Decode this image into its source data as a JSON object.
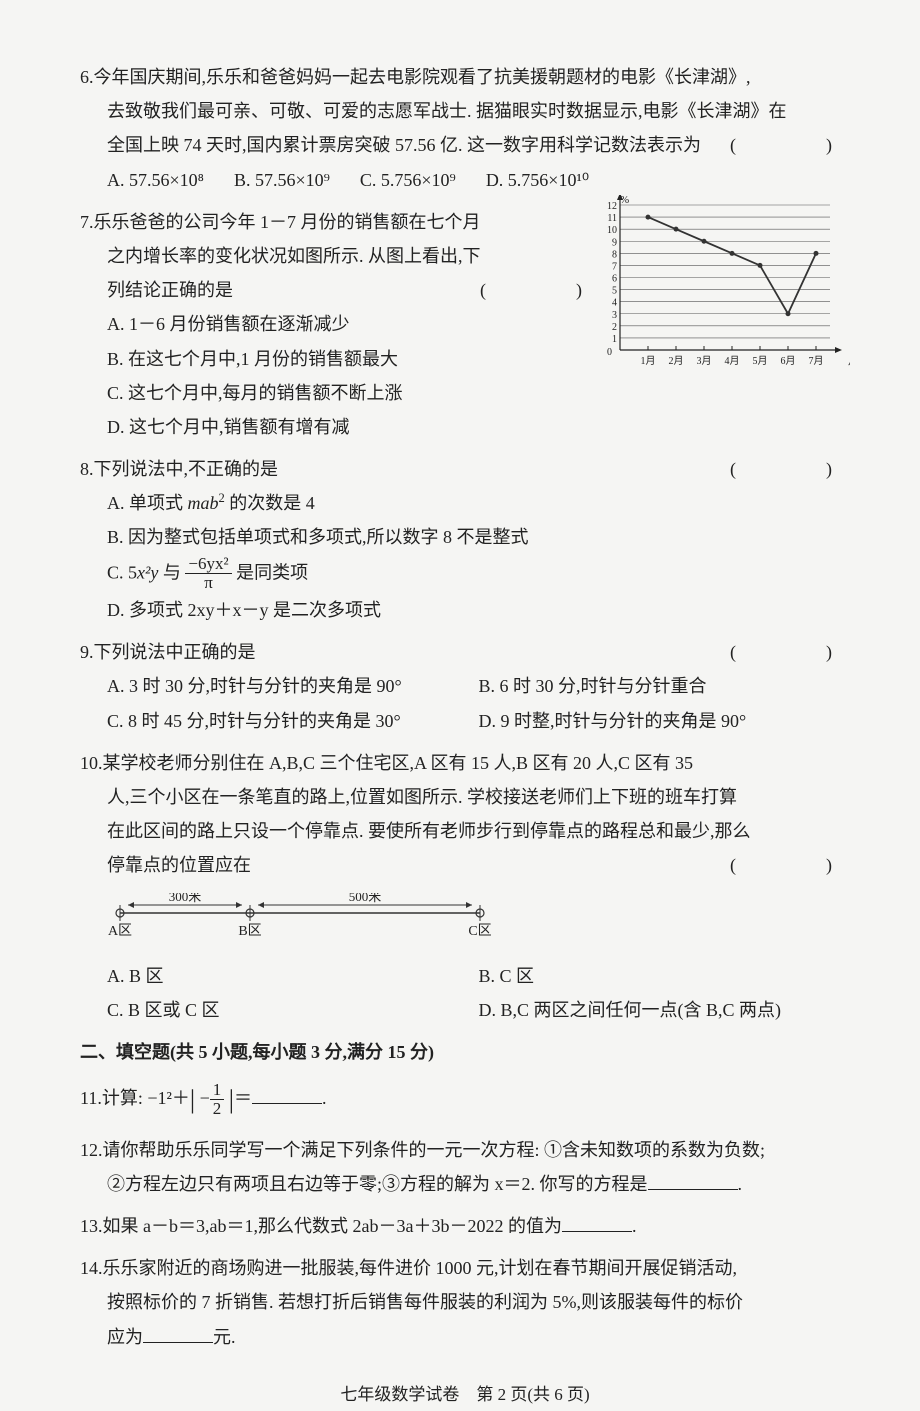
{
  "q6": {
    "num": "6.",
    "text1": "今年国庆期间,乐乐和爸爸妈妈一起去电影院观看了抗美援朝题材的电影《长津湖》,",
    "text2": "去致敬我们最可亲、可敬、可爱的志愿军战士. 据猫眼实时数据显示,电影《长津湖》在",
    "text3": "全国上映 74 天时,国内累计票房突破 57.56 亿. 这一数字用科学记数法表示为",
    "paren": "(　　)",
    "optA": "A. 57.56×10⁸",
    "optB": "B. 57.56×10⁹",
    "optC": "C. 5.756×10⁹",
    "optD": "D. 5.756×10¹⁰"
  },
  "q7": {
    "num": "7.",
    "text1": "乐乐爸爸的公司今年 1－7 月份的销售额在七个月",
    "text2": "之内增长率的变化状况如图所示. 从图上看出,下",
    "text3": "列结论正确的是",
    "paren": "(　　)",
    "optA": "A. 1－6 月份销售额在逐渐减少",
    "optB": "B. 在这七个月中,1 月份的销售额最大",
    "optC": "C. 这七个月中,每月的销售额不断上涨",
    "optD": "D. 这七个月中,销售额有增有减"
  },
  "chart": {
    "ylabel": "%",
    "ymax": 12,
    "ymin": 0,
    "xlabels": [
      "1月",
      "2月",
      "3月",
      "4月",
      "5月",
      "6月",
      "7月"
    ],
    "xaxis_label": "月份",
    "data": [
      11,
      10,
      9,
      8,
      7,
      3,
      8
    ],
    "line_color": "#333333",
    "grid_color": "#555555",
    "bg": "#f5f5f3"
  },
  "q8": {
    "num": "8.",
    "text": "下列说法中,不正确的是",
    "paren": "(　　)",
    "optA_pre": "A. 单项式 ",
    "optA_mid": "mab",
    "optA_exp": "2",
    "optA_post": " 的次数是 4",
    "optB": "B. 因为整式包括单项式和多项式,所以数字 8 不是整式",
    "optC_pre": "C. 5",
    "optC_x2y": "x²y",
    "optC_mid": " 与 ",
    "optC_frac_num": "−6yx²",
    "optC_frac_den": "π",
    "optC_post": " 是同类项",
    "optD": "D. 多项式 2xy＋x－y 是二次多项式"
  },
  "q9": {
    "num": "9.",
    "text": "下列说法中正确的是",
    "paren": "(　　)",
    "optA": "A. 3 时 30 分,时针与分针的夹角是 90°",
    "optB": "B. 6 时 30 分,时针与分针重合",
    "optC": "C. 8 时 45 分,时针与分针的夹角是 30°",
    "optD": "D. 9 时整,时针与分针的夹角是 90°"
  },
  "q10": {
    "num": "10.",
    "text1": "某学校老师分别住在 A,B,C 三个住宅区,A 区有 15 人,B 区有 20 人,C 区有 35",
    "text2": "人,三个小区在一条笔直的路上,位置如图所示. 学校接送老师们上下班的班车打算",
    "text3": "在此区间的路上只设一个停靠点. 要使所有老师步行到停靠点的路程总和最少,那么",
    "text4": "停靠点的位置应在",
    "paren": "(　　)",
    "optA": "A. B 区",
    "optB": "B. C 区",
    "optC": "C. B 区或 C 区",
    "optD": "D. B,C 两区之间任何一点(含 B,C 两点)",
    "diagram": {
      "A": "A区",
      "B": "B区",
      "C": "C区",
      "d1": "300米",
      "d2": "500米",
      "line_color": "#333"
    }
  },
  "section2": "二、填空题(共 5 小题,每小题 3 分,满分 15 分)",
  "q11": {
    "num": "11.",
    "pre": "计算: −1²＋",
    "frac_num": "1",
    "frac_den": "2",
    "post": "＝",
    "neg": "−",
    "end": "."
  },
  "q12": {
    "num": "12.",
    "text1": "请你帮助乐乐同学写一个满足下列条件的一元一次方程: ①含未知数项的系数为负数;",
    "text2": "②方程左边只有两项且右边等于零;③方程的解为 x＝2. 你写的方程是",
    "end": "."
  },
  "q13": {
    "num": "13.",
    "text": "如果 a－b＝3,ab＝1,那么代数式 2ab－3a＋3b－2022 的值为",
    "end": "."
  },
  "q14": {
    "num": "14.",
    "text1": "乐乐家附近的商场购进一批服装,每件进价 1000 元,计划在春节期间开展促销活动,",
    "text2": "按照标价的 7 折销售. 若想打折后销售每件服装的利润为 5%,则该服装每件的标价",
    "text3": "应为",
    "unit": "元."
  },
  "footer": "七年级数学试卷　第 2 页(共 6 页)"
}
